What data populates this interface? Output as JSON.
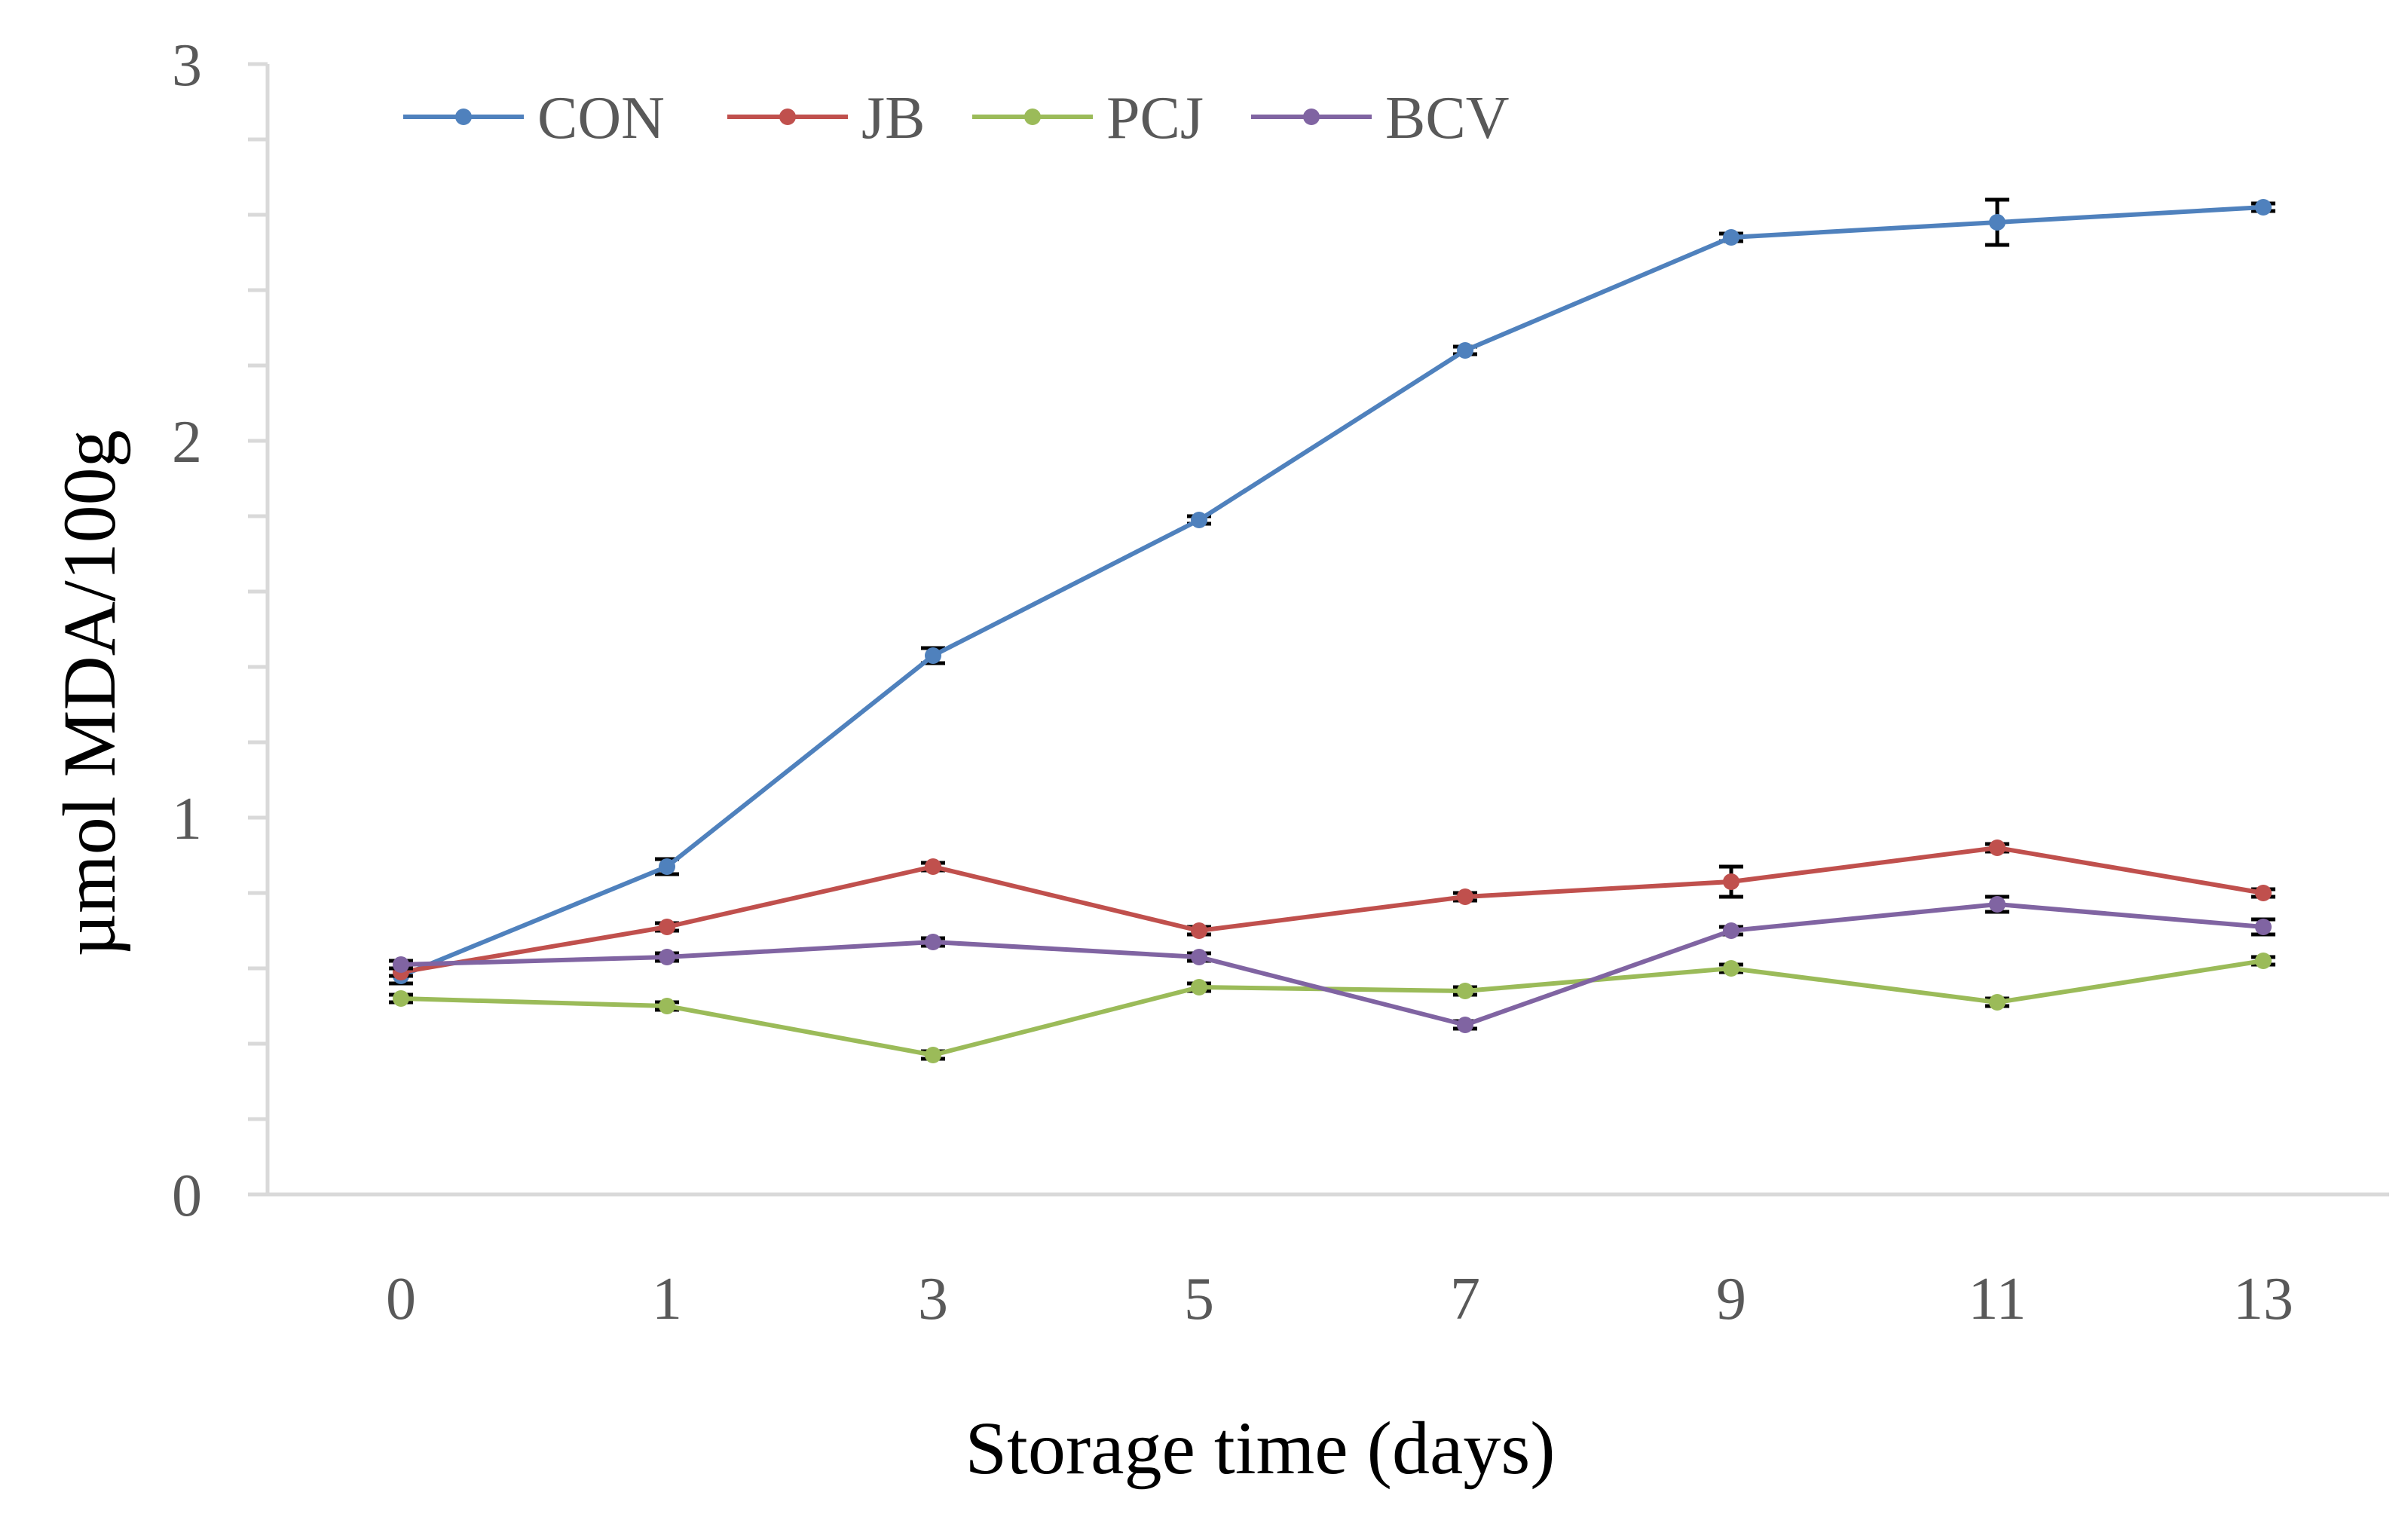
{
  "chart_data": {
    "type": "line",
    "title": "",
    "xlabel": "Storage time (days)",
    "ylabel": "µmol MDA/100g",
    "categories": [
      "0",
      "1",
      "3",
      "5",
      "7",
      "9",
      "11",
      "13"
    ],
    "ylim": [
      0,
      3
    ],
    "yticks": [
      "0",
      "1",
      "2",
      "3"
    ],
    "minor_tick_step": 0.2,
    "grid": false,
    "legend_position": "top-left",
    "series": [
      {
        "name": "CON",
        "color": "#4F81BD",
        "values": [
          0.58,
          0.87,
          1.43,
          1.79,
          2.24,
          2.54,
          2.58,
          2.62
        ],
        "errors": [
          0.02,
          0.02,
          0.02,
          0.01,
          0.01,
          0.01,
          0.06,
          0.01
        ]
      },
      {
        "name": "JB",
        "color": "#C0504D",
        "values": [
          0.59,
          0.71,
          0.87,
          0.7,
          0.79,
          0.83,
          0.92,
          0.8
        ],
        "errors": [
          0.01,
          0.01,
          0.01,
          0.01,
          0.01,
          0.04,
          0.01,
          0.01
        ]
      },
      {
        "name": "PCJ",
        "color": "#9BBB59",
        "values": [
          0.52,
          0.5,
          0.37,
          0.55,
          0.54,
          0.6,
          0.51,
          0.62
        ],
        "errors": [
          0.01,
          0.01,
          0.01,
          0.01,
          0.01,
          0.01,
          0.01,
          0.01
        ]
      },
      {
        "name": "BCV",
        "color": "#8064A2",
        "values": [
          0.61,
          0.63,
          0.67,
          0.63,
          0.45,
          0.7,
          0.77,
          0.71
        ],
        "errors": [
          0.01,
          0.01,
          0.01,
          0.01,
          0.01,
          0.01,
          0.02,
          0.02
        ]
      }
    ]
  }
}
